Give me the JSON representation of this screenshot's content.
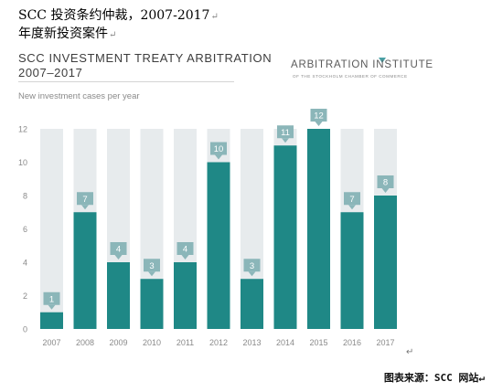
{
  "document": {
    "title_line1": "SCC 投资条约仲裁，2007-2017",
    "title_line2": "年度新投资案件",
    "para_mark": "↵",
    "source_note": "图表来源：SCC 网站↵"
  },
  "logo": {
    "name": "ARBITRATION INSTITUTE",
    "subtitle": "OF THE STOCKHOLM CHAMBER OF COMMERCE",
    "icon": "institute-emblem-icon",
    "color": "#4aa0a5"
  },
  "colors": {
    "bar": "#1f8886",
    "track": "#e7ebed",
    "label_box": "#8bb6b9",
    "tick_text": "#8a8a8a"
  },
  "chart_data": {
    "type": "bar",
    "title": "SCC INVESTMENT TREATY ARBITRATION",
    "subtitle": "2007–2017",
    "ylabel": "New investment cases per year",
    "xlabel": "",
    "categories": [
      "2007",
      "2008",
      "2009",
      "2010",
      "2011",
      "2012",
      "2013",
      "2014",
      "2015",
      "2016",
      "2017"
    ],
    "values": [
      1,
      7,
      4,
      3,
      4,
      10,
      3,
      11,
      12,
      7,
      8
    ],
    "ylim": [
      0,
      12
    ],
    "yticks": [
      0,
      2,
      4,
      6,
      8,
      10,
      12
    ],
    "grid": false,
    "data_labels": true,
    "legend": "none"
  }
}
